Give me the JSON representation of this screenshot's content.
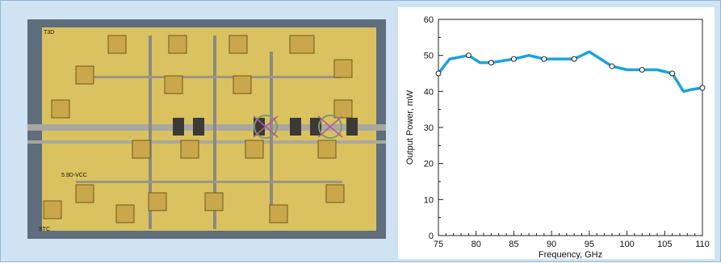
{
  "figure": {
    "photo_alt": "MMIC power amplifier chip micrograph",
    "chip_labels": [
      "5.9D-VCC",
      "T3D",
      "STC"
    ]
  },
  "chart_data": {
    "type": "line",
    "title": "",
    "xlabel": "Frequency, GHz",
    "ylabel": "Output Power, mW",
    "xlim": [
      75,
      110
    ],
    "ylim": [
      0,
      60
    ],
    "xticks": [
      75,
      80,
      85,
      90,
      95,
      100,
      105,
      110
    ],
    "yticks": [
      0,
      10,
      20,
      30,
      40,
      50,
      60
    ],
    "grid": false,
    "series": [
      {
        "name": "",
        "color": "#1aa3dd",
        "x": [
          75,
          76.5,
          79,
          80.5,
          82,
          83.5,
          85,
          87,
          89,
          91,
          93,
          95,
          98,
          100,
          102,
          104,
          106,
          107.5,
          108.5,
          110
        ],
        "y": [
          45,
          49,
          50,
          48,
          48,
          48.5,
          49,
          50,
          49,
          49,
          49,
          51,
          47,
          46,
          46,
          46,
          45,
          40,
          40.5,
          41
        ]
      }
    ],
    "markers_x": [
      75,
      79,
      82,
      85,
      89,
      93,
      98,
      102,
      106,
      110
    ]
  }
}
